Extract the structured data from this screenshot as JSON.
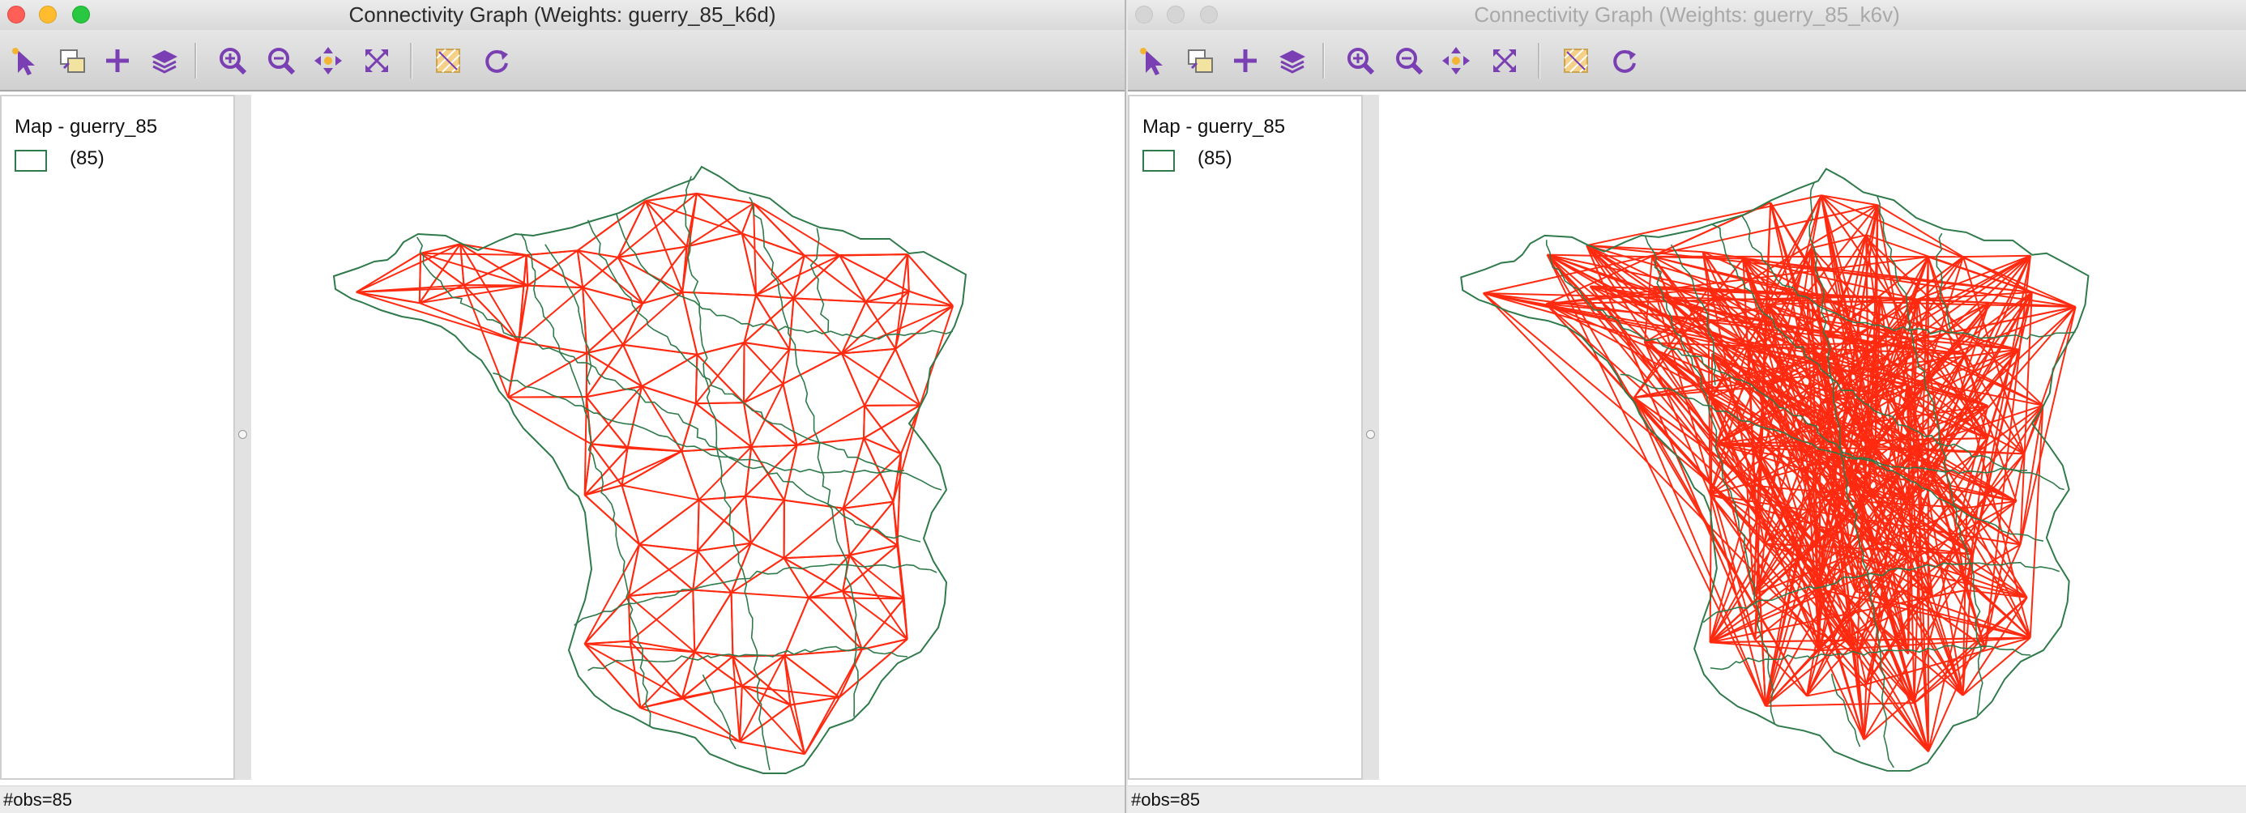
{
  "windows": [
    {
      "id": "left",
      "title": "Connectivity Graph (Weights: guerry_85_k6d)",
      "active": true,
      "legend": {
        "title": "Map - guerry_85",
        "count": "(85)"
      },
      "status": "#obs=85"
    },
    {
      "id": "right",
      "title": "Connectivity Graph (Weights: guerry_85_k6v)",
      "active": false,
      "legend": {
        "title": "Map - guerry_85",
        "count": "(85)"
      },
      "status": "#obs=85"
    }
  ],
  "toolbar": {
    "buttons": [
      {
        "name": "select-tool-icon"
      },
      {
        "name": "selection-shape-icon"
      },
      {
        "name": "add-layer-icon"
      },
      {
        "name": "layers-icon"
      },
      {
        "name": "zoom-in-icon"
      },
      {
        "name": "zoom-out-icon"
      },
      {
        "name": "pan-icon"
      },
      {
        "name": "full-extent-icon"
      },
      {
        "name": "basemap-icon"
      },
      {
        "name": "refresh-icon"
      }
    ]
  },
  "colors": {
    "boundary": "#2f7a4a",
    "edge": "#ff2a10",
    "toolbar_icon": "#7a3fb2",
    "accent_yellow": "#f3b531"
  }
}
